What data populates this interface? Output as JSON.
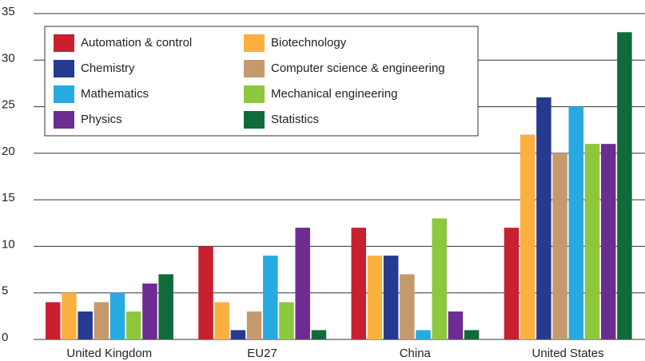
{
  "chart_data": {
    "type": "bar",
    "categories": [
      "United Kingdom",
      "EU27",
      "China",
      "United States"
    ],
    "series": [
      {
        "name": "Automation & control",
        "color": "#c8202f",
        "values": [
          4,
          10,
          12,
          12
        ]
      },
      {
        "name": "Biotechnology",
        "color": "#fbb040",
        "values": [
          5,
          4,
          9,
          22
        ]
      },
      {
        "name": "Chemistry",
        "color": "#263a8f",
        "values": [
          3,
          1,
          9,
          26
        ]
      },
      {
        "name": "Computer science & engineering",
        "color": "#c49a6c",
        "values": [
          4,
          3,
          7,
          20
        ]
      },
      {
        "name": "Mathematics",
        "color": "#27aae1",
        "values": [
          5,
          9,
          1,
          25
        ]
      },
      {
        "name": "Mechanical engineering",
        "color": "#8dc63f",
        "values": [
          3,
          4,
          13,
          21
        ]
      },
      {
        "name": "Physics",
        "color": "#6d2c91",
        "values": [
          6,
          12,
          3,
          21
        ]
      },
      {
        "name": "Statistics",
        "color": "#0f6b3a",
        "values": [
          7,
          1,
          1,
          33
        ]
      }
    ],
    "ylim": [
      0,
      35
    ],
    "yticks": [
      0,
      5,
      10,
      15,
      20,
      25,
      30,
      35
    ],
    "grid": true,
    "legend": "top-left"
  }
}
